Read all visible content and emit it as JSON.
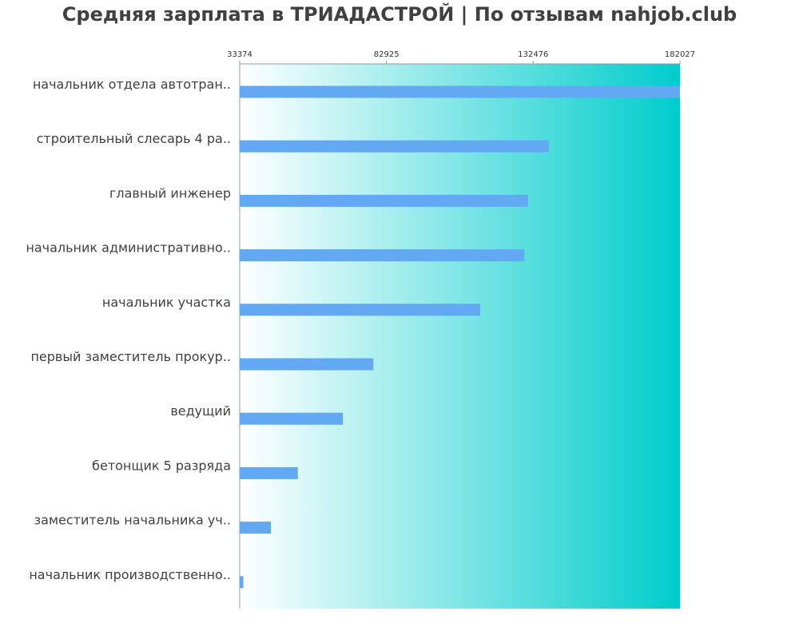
{
  "chart_data": {
    "type": "bar",
    "orientation": "horizontal",
    "title": "Средняя зарплата в ТРИАДАСТРОЙ | По отзывам nahjob.club",
    "xlim": [
      33374,
      182027
    ],
    "ticks": [
      {
        "value": 33374,
        "label": "33374"
      },
      {
        "value": 82925,
        "label": "82925"
      },
      {
        "value": 132476,
        "label": "132476"
      },
      {
        "value": 182027,
        "label": "182027"
      }
    ],
    "categories": [
      "начальник отдела автотран..",
      "строительный слесарь 4 ра..",
      "главный инженер",
      "начальник административно..",
      "начальник участка",
      "первый заместитель прокур..",
      "ведущий",
      "бетонщик 5 разряда",
      "заместитель начальника уч..",
      "начальник производственно.."
    ],
    "values": [
      182027,
      137800,
      130700,
      129500,
      114600,
      78500,
      68200,
      53000,
      43900,
      34600
    ],
    "grid": false,
    "colors": {
      "bar": "#63a8f3",
      "gradient_start": "#ffffff",
      "gradient_end": "#00cccc",
      "axis": "#999999",
      "title": "#404040",
      "label": "#404040"
    }
  }
}
